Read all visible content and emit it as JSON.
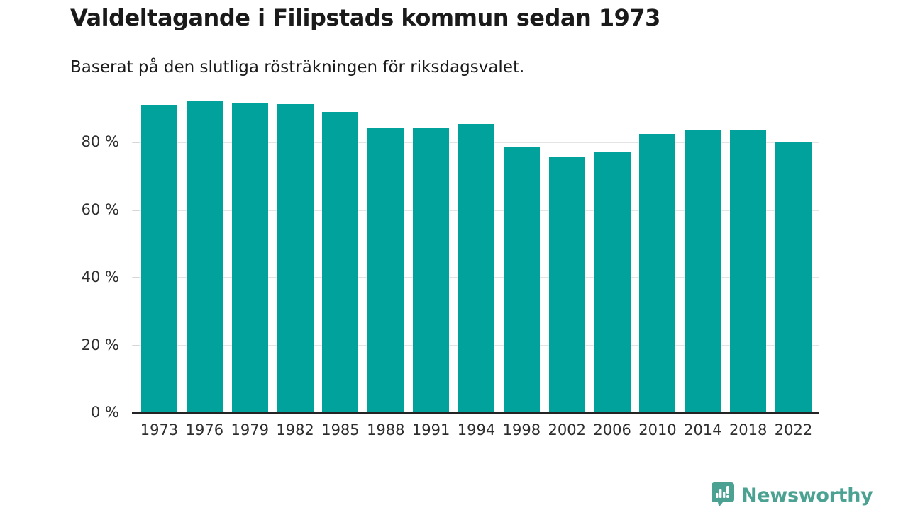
{
  "title": "Valdeltagande i Filipstads kommun sedan 1973",
  "subtitle": "Baserat på den slutliga rösträkningen för riksdagsvalet.",
  "logo": {
    "text": "Newsworthy",
    "icon": "speech-bubble-bar-chart-exclamation-icon",
    "color": "#4ba292"
  },
  "colors": {
    "bar": "#00a29b",
    "gridline": "#e4e4e4",
    "axis": "#242424",
    "text": "#1a1a1a",
    "tick_label": "#2e2e2e"
  },
  "chart_data": {
    "type": "bar",
    "title": "Valdeltagande i Filipstads kommun sedan 1973",
    "subtitle": "Baserat på den slutliga rösträkningen för riksdagsvalet.",
    "categories": [
      "1973",
      "1976",
      "1979",
      "1982",
      "1985",
      "1988",
      "1991",
      "1994",
      "1998",
      "2002",
      "2006",
      "2010",
      "2014",
      "2018",
      "2022"
    ],
    "values": [
      91.1,
      92.4,
      91.5,
      91.4,
      89.1,
      84.4,
      84.5,
      85.4,
      78.5,
      75.9,
      77.3,
      82.5,
      83.5,
      83.8,
      80.3
    ],
    "unit": "%",
    "xlabel": "",
    "ylabel": "",
    "ylim": [
      0,
      100
    ],
    "yticks": [
      0,
      20,
      40,
      60,
      80
    ],
    "ytick_labels": [
      "0 %",
      "20 %",
      "40 %",
      "60 %",
      "80 %"
    ],
    "grid": "horizontal",
    "legend": "none",
    "bar_color": "#00a29b"
  }
}
